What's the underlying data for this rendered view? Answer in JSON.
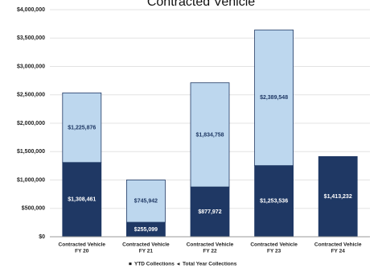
{
  "chart_data": {
    "type": "bar",
    "stacked": true,
    "title": "Contracted Vehicle",
    "categories": [
      "Contracted Vehicle FY 20",
      "Contracted Vehicle FY 21",
      "Contracted Vehicle FY 22",
      "Contracted Vehicle FY 23",
      "Contracted Vehicle FY 24"
    ],
    "category_lines": [
      [
        "Contracted Vehicle",
        "FY 20"
      ],
      [
        "Contracted Vehicle",
        "FY 21"
      ],
      [
        "Contracted Vehicle",
        "FY 22"
      ],
      [
        "Contracted Vehicle",
        "FY 23"
      ],
      [
        "Contracted Vehicle",
        "FY 24"
      ]
    ],
    "series": [
      {
        "name": "YTD Collections",
        "color": "#1f3864",
        "values": [
          1308461,
          255099,
          877972,
          1253536,
          1413232
        ],
        "labels": [
          "$1,308,461",
          "$255,099",
          "$877,972",
          "$1,253,536",
          "$1,413,232"
        ]
      },
      {
        "name": "Total Year Collections",
        "color": "#bdd7ee",
        "values": [
          1225876,
          745942,
          1834758,
          2389548,
          null
        ],
        "labels": [
          "$1,225,876",
          "$745,942",
          "$1,834,758",
          "$2,389,548",
          ""
        ]
      }
    ],
    "ylim": [
      0,
      4000000
    ],
    "y_ticks": [
      0,
      500000,
      1000000,
      1500000,
      2000000,
      2500000,
      3000000,
      3500000,
      4000000
    ],
    "y_tick_labels": [
      "$0",
      "$500,000",
      "$1,000,000",
      "$1,500,000",
      "$2,000,000",
      "$2,500,000",
      "$3,000,000",
      "$3,500,000",
      "$4,000,000"
    ],
    "grid": true,
    "legend_position": "bottom",
    "legend_markers": [
      "■",
      "◂"
    ]
  }
}
